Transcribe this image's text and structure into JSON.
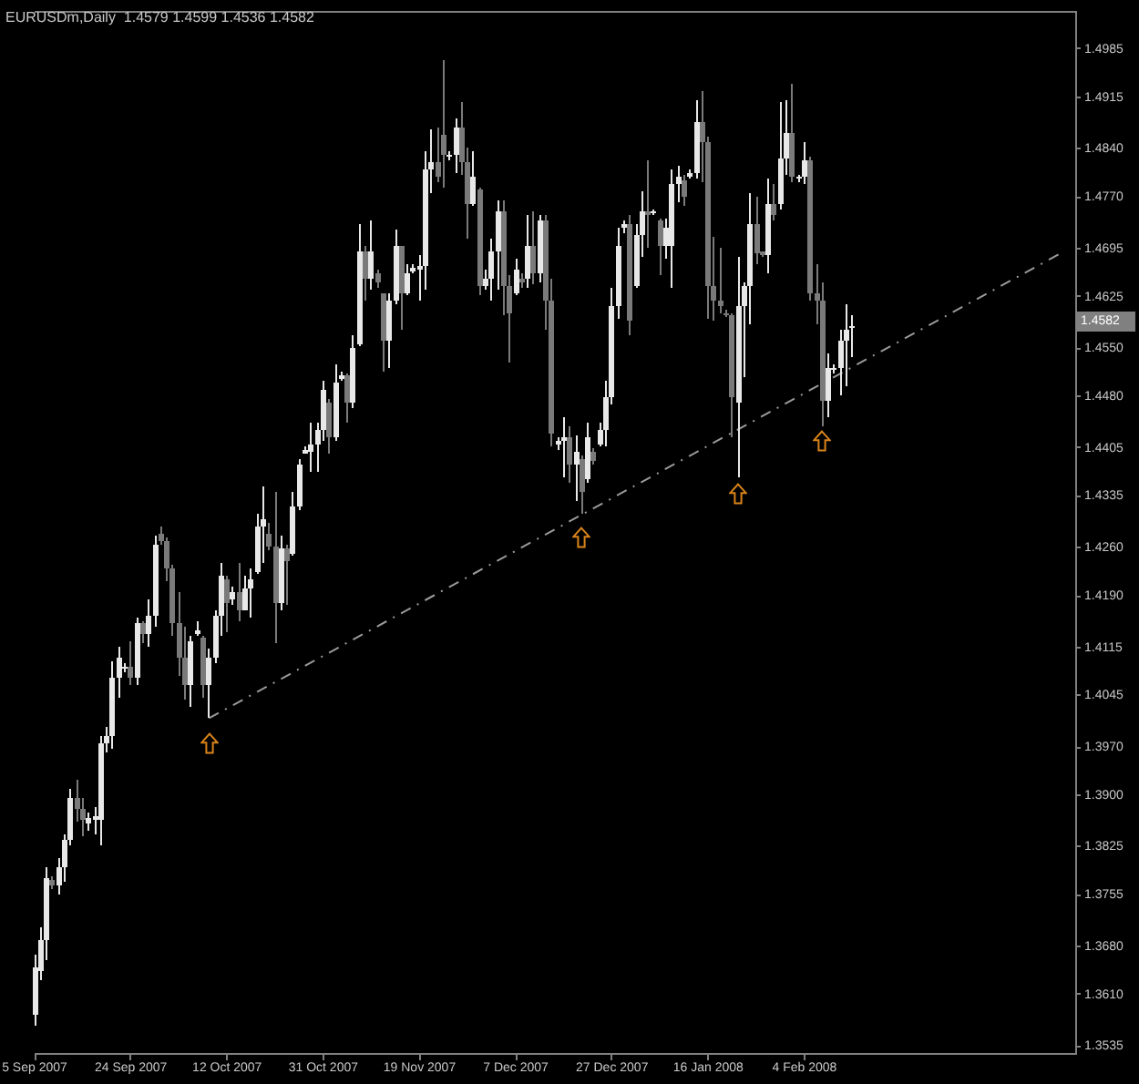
{
  "chart_data": {
    "type": "candlestick",
    "title": "EURUSDm,Daily  1.4579 1.4599 1.4536 1.4582",
    "categories": [
      "5 Sep 2007",
      null,
      null,
      null,
      null,
      null,
      null,
      null,
      null,
      null,
      null,
      null,
      null,
      null,
      null,
      null,
      "24 Sep 2007",
      null,
      null,
      null,
      null,
      null,
      null,
      null,
      null,
      null,
      null,
      null,
      null,
      null,
      null,
      null,
      "12 Oct 2007",
      null,
      null,
      null,
      null,
      null,
      null,
      null,
      null,
      null,
      null,
      null,
      null,
      null,
      null,
      null,
      "31 Oct 2007",
      null,
      null,
      null,
      null,
      null,
      null,
      null,
      null,
      null,
      null,
      null,
      null,
      null,
      null,
      null,
      "19 Nov 2007",
      null,
      null,
      null,
      null,
      null,
      null,
      null,
      null,
      null,
      null,
      null,
      null,
      null,
      null,
      null,
      "7 Dec 2007",
      null,
      null,
      null,
      null,
      null,
      null,
      null,
      null,
      null,
      null,
      null,
      null,
      null,
      null,
      null,
      "27 Dec 2007",
      null,
      null,
      null,
      null,
      null,
      null,
      null,
      null,
      null,
      null,
      null,
      null,
      null,
      null,
      null,
      "16 Jan 2008",
      null,
      null,
      null,
      null,
      null,
      null,
      null,
      null,
      null,
      null,
      null,
      null,
      null,
      null,
      null,
      "4 Feb 2008",
      null,
      null,
      null,
      null,
      null,
      null,
      null,
      null,
      null,
      null,
      null,
      null,
      null,
      null,
      null,
      null,
      null,
      null,
      null,
      null,
      null,
      null,
      null,
      null,
      null,
      null,
      null,
      null,
      null,
      null,
      null,
      null,
      null,
      null,
      null,
      null,
      null,
      null,
      null,
      null,
      null,
      null,
      null,
      null,
      null
    ],
    "ohlc": [
      [
        1.358,
        1.3669,
        1.3564,
        1.365
      ],
      [
        1.3645,
        1.3709,
        1.363,
        1.369
      ],
      [
        1.369,
        1.3796,
        1.3659,
        1.378
      ],
      [
        1.3778,
        1.3783,
        1.3764,
        1.377
      ],
      [
        1.377,
        1.3809,
        1.3756,
        1.3795
      ],
      [
        1.3795,
        1.3843,
        1.3775,
        1.3835
      ],
      [
        1.3835,
        1.3909,
        1.3827,
        1.3895
      ],
      [
        1.3895,
        1.3922,
        1.3862,
        1.388
      ],
      [
        1.388,
        1.3896,
        1.3841,
        1.3865
      ],
      [
        1.386,
        1.3875,
        1.3849,
        1.3868
      ],
      [
        1.3865,
        1.3883,
        1.3843,
        1.387
      ],
      [
        1.3865,
        1.3986,
        1.3827,
        1.3975
      ],
      [
        1.3975,
        1.3999,
        1.3962,
        1.3985
      ],
      [
        1.3985,
        1.4094,
        1.3967,
        1.407
      ],
      [
        1.407,
        1.4117,
        1.4041,
        1.41
      ],
      [
        1.4085,
        1.4091,
        1.408,
        1.4088
      ],
      [
        1.4088,
        1.4125,
        1.4059,
        1.407
      ],
      [
        1.407,
        1.4157,
        1.4059,
        1.415
      ],
      [
        1.415,
        1.4152,
        1.412,
        1.4135
      ],
      [
        1.4135,
        1.4186,
        1.4117,
        1.416
      ],
      [
        1.416,
        1.4278,
        1.4146,
        1.4265
      ],
      [
        1.428,
        1.429,
        1.4265,
        1.427
      ],
      [
        1.427,
        1.4275,
        1.421,
        1.423
      ],
      [
        1.423,
        1.4236,
        1.4133,
        1.415
      ],
      [
        1.415,
        1.4196,
        1.4073,
        1.41
      ],
      [
        1.41,
        1.4146,
        1.4038,
        1.406
      ],
      [
        1.406,
        1.4133,
        1.4028,
        1.4125
      ],
      [
        1.4135,
        1.4152,
        1.4133,
        1.414
      ],
      [
        1.413,
        1.4133,
        1.4041,
        1.406
      ],
      [
        1.406,
        1.4112,
        1.4012,
        1.41
      ],
      [
        1.41,
        1.417,
        1.4091,
        1.416
      ],
      [
        1.416,
        1.4239,
        1.4133,
        1.422
      ],
      [
        1.4215,
        1.4218,
        1.4138,
        1.418
      ],
      [
        1.4185,
        1.4204,
        1.4178,
        1.4195
      ],
      [
        1.4195,
        1.4239,
        1.4152,
        1.417
      ],
      [
        1.417,
        1.4218,
        1.417,
        1.42
      ],
      [
        1.42,
        1.4231,
        1.4157,
        1.4215
      ],
      [
        1.4225,
        1.431,
        1.4223,
        1.429
      ],
      [
        1.429,
        1.4349,
        1.4239,
        1.43
      ],
      [
        1.428,
        1.4297,
        1.4257,
        1.4262
      ],
      [
        1.4262,
        1.4341,
        1.412,
        1.418
      ],
      [
        1.418,
        1.4278,
        1.417,
        1.426
      ],
      [
        1.426,
        1.4265,
        1.4178,
        1.424
      ],
      [
        1.425,
        1.4341,
        1.4249,
        1.432
      ],
      [
        1.432,
        1.4389,
        1.4315,
        1.438
      ],
      [
        1.4398,
        1.4407,
        1.4397,
        1.4403
      ],
      [
        1.44,
        1.4442,
        1.437,
        1.441
      ],
      [
        1.441,
        1.4442,
        1.437,
        1.443
      ],
      [
        1.443,
        1.4502,
        1.4415,
        1.449
      ],
      [
        1.447,
        1.4476,
        1.4397,
        1.442
      ],
      [
        1.442,
        1.4526,
        1.4415,
        1.45
      ],
      [
        1.4505,
        1.4515,
        1.4502,
        1.451
      ],
      [
        1.451,
        1.4513,
        1.4442,
        1.447
      ],
      [
        1.447,
        1.4568,
        1.4463,
        1.455
      ],
      [
        1.4555,
        1.4731,
        1.4552,
        1.469
      ],
      [
        1.469,
        1.47,
        1.4618,
        1.465
      ],
      [
        1.465,
        1.4737,
        1.4634,
        1.469
      ],
      [
        1.466,
        1.4665,
        1.4639,
        1.4645
      ],
      [
        1.463,
        1.4631,
        1.4515,
        1.456
      ],
      [
        1.456,
        1.4631,
        1.4521,
        1.462
      ],
      [
        1.462,
        1.4723,
        1.4613,
        1.47
      ],
      [
        1.47,
        1.47,
        1.4578,
        1.463
      ],
      [
        1.463,
        1.4673,
        1.4626,
        1.466
      ],
      [
        1.4662,
        1.4671,
        1.466,
        1.4667
      ],
      [
        1.4665,
        1.4686,
        1.4618,
        1.467
      ],
      [
        1.467,
        1.4837,
        1.4634,
        1.481
      ],
      [
        1.481,
        1.4868,
        1.4776,
        1.482
      ],
      [
        1.482,
        1.4871,
        1.4792,
        1.48
      ],
      [
        1.486,
        1.4968,
        1.4784,
        1.483
      ],
      [
        1.483,
        1.4837,
        1.4824,
        1.4832
      ],
      [
        1.483,
        1.4884,
        1.4805,
        1.487
      ],
      [
        1.487,
        1.4908,
        1.4802,
        1.482
      ],
      [
        1.482,
        1.4842,
        1.471,
        1.476
      ],
      [
        1.476,
        1.4837,
        1.4758,
        1.48
      ],
      [
        1.478,
        1.4784,
        1.4626,
        1.464
      ],
      [
        1.464,
        1.4665,
        1.4634,
        1.465
      ],
      [
        1.465,
        1.471,
        1.4618,
        1.469
      ],
      [
        1.469,
        1.4765,
        1.4634,
        1.475
      ],
      [
        1.475,
        1.4765,
        1.4597,
        1.464
      ],
      [
        1.464,
        1.4657,
        1.4528,
        1.46
      ],
      [
        1.463,
        1.4679,
        1.4626,
        1.4665
      ],
      [
        1.465,
        1.466,
        1.4639,
        1.4645
      ],
      [
        1.465,
        1.4744,
        1.4639,
        1.47
      ],
      [
        1.47,
        1.475,
        1.4644,
        1.466
      ],
      [
        1.466,
        1.4744,
        1.4647,
        1.4735
      ],
      [
        1.4735,
        1.4744,
        1.4578,
        1.462
      ],
      [
        1.462,
        1.4652,
        1.4407,
        1.4425
      ],
      [
        1.441,
        1.442,
        1.4402,
        1.4415
      ],
      [
        1.4415,
        1.4449,
        1.4362,
        1.442
      ],
      [
        1.442,
        1.4436,
        1.4355,
        1.438
      ],
      [
        1.438,
        1.4423,
        1.4328,
        1.44
      ],
      [
        1.439,
        1.4394,
        1.431,
        1.434
      ],
      [
        1.436,
        1.4442,
        1.4355,
        1.442
      ],
      [
        1.44,
        1.4405,
        1.438,
        1.4385
      ],
      [
        1.441,
        1.4442,
        1.4407,
        1.443
      ],
      [
        1.443,
        1.4502,
        1.4407,
        1.448
      ],
      [
        1.448,
        1.4639,
        1.4468,
        1.461
      ],
      [
        1.461,
        1.4726,
        1.4592,
        1.47
      ],
      [
        1.4725,
        1.4737,
        1.4718,
        1.473
      ],
      [
        1.473,
        1.4744,
        1.4568,
        1.459
      ],
      [
        1.464,
        1.4731,
        1.4639,
        1.4715
      ],
      [
        1.4715,
        1.4779,
        1.4684,
        1.475
      ],
      [
        1.475,
        1.4824,
        1.4697,
        1.4745
      ],
      [
        1.4748,
        1.4752,
        1.4745,
        1.475
      ],
      [
        1.4735,
        1.4739,
        1.4657,
        1.47
      ],
      [
        1.47,
        1.4739,
        1.4679,
        1.4725
      ],
      [
        1.47,
        1.481,
        1.4639,
        1.479
      ],
      [
        1.479,
        1.4816,
        1.4763,
        1.48
      ],
      [
        1.4795,
        1.4802,
        1.4758,
        1.477
      ],
      [
        1.48,
        1.481,
        1.4797,
        1.4805
      ],
      [
        1.4805,
        1.4911,
        1.4797,
        1.488
      ],
      [
        1.488,
        1.4924,
        1.4792,
        1.485
      ],
      [
        1.485,
        1.4858,
        1.4592,
        1.464
      ],
      [
        1.464,
        1.4713,
        1.4589,
        1.462
      ],
      [
        1.462,
        1.4697,
        1.46,
        1.461
      ],
      [
        1.46,
        1.4605,
        1.4595,
        1.4598
      ],
      [
        1.4598,
        1.46,
        1.442,
        1.448
      ],
      [
        1.447,
        1.4684,
        1.4362,
        1.461
      ],
      [
        1.461,
        1.4647,
        1.4507,
        1.464
      ],
      [
        1.464,
        1.4776,
        1.4586,
        1.473
      ],
      [
        1.473,
        1.4771,
        1.4671,
        1.4687
      ],
      [
        1.469,
        1.4692,
        1.4684,
        1.4686
      ],
      [
        1.4686,
        1.4797,
        1.466,
        1.476
      ],
      [
        1.476,
        1.4789,
        1.4737,
        1.4745
      ],
      [
        1.476,
        1.4908,
        1.4752,
        1.4826
      ],
      [
        1.4826,
        1.4911,
        1.4802,
        1.4863
      ],
      [
        1.4863,
        1.4934,
        1.4792,
        1.48
      ],
      [
        1.4798,
        1.4802,
        1.4792,
        1.48
      ],
      [
        1.48,
        1.485,
        1.4789,
        1.4824
      ],
      [
        1.4824,
        1.4829,
        1.4618,
        1.463
      ],
      [
        1.463,
        1.4671,
        1.4586,
        1.462
      ],
      [
        1.462,
        1.4647,
        1.4436,
        1.4473
      ],
      [
        1.4473,
        1.4542,
        1.445,
        1.452
      ],
      [
        1.4518,
        1.4526,
        1.4513,
        1.4522
      ],
      [
        1.4522,
        1.4576,
        1.4481,
        1.456
      ],
      [
        1.456,
        1.4615,
        1.4494,
        1.4577
      ],
      [
        1.4579,
        1.4599,
        1.4536,
        1.4582
      ],
      null,
      null,
      null,
      null,
      null,
      null,
      null,
      null,
      null,
      null,
      null,
      null,
      null,
      null,
      null,
      null,
      null,
      null,
      null,
      null,
      null,
      null,
      null,
      null,
      null,
      null,
      null,
      null,
      null,
      null,
      null,
      null,
      null,
      null,
      null,
      null,
      null
    ],
    "colors": [
      "#e8e8e8",
      "#e8e8e8",
      "#e8e8e8",
      "#7a7a7a",
      "#e8e8e8",
      "#e8e8e8",
      "#e8e8e8",
      "#7a7a7a",
      "#7a7a7a",
      "#e8e8e8",
      "#e8e8e8",
      "#e8e8e8",
      "#e8e8e8",
      "#e8e8e8",
      "#e8e8e8",
      "#e8e8e8",
      "#7a7a7a",
      "#e8e8e8",
      "#7a7a7a",
      "#e8e8e8",
      "#e8e8e8",
      "#7a7a7a",
      "#7a7a7a",
      "#7a7a7a",
      "#7a7a7a",
      "#7a7a7a",
      "#e8e8e8",
      "#e8e8e8",
      "#7a7a7a",
      "#e8e8e8",
      "#e8e8e8",
      "#e8e8e8",
      "#7a7a7a",
      "#e8e8e8",
      "#7a7a7a",
      "#e8e8e8",
      "#e8e8e8",
      "#e8e8e8",
      "#e8e8e8",
      "#7a7a7a",
      "#7a7a7a",
      "#e8e8e8",
      "#7a7a7a",
      "#e8e8e8",
      "#e8e8e8",
      "#e8e8e8",
      "#e8e8e8",
      "#e8e8e8",
      "#e8e8e8",
      "#7a7a7a",
      "#e8e8e8",
      "#e8e8e8",
      "#7a7a7a",
      "#e8e8e8",
      "#e8e8e8",
      "#7a7a7a",
      "#e8e8e8",
      "#7a7a7a",
      "#7a7a7a",
      "#e8e8e8",
      "#e8e8e8",
      "#7a7a7a",
      "#e8e8e8",
      "#e8e8e8",
      "#e8e8e8",
      "#e8e8e8",
      "#e8e8e8",
      "#7a7a7a",
      "#7a7a7a",
      "#e8e8e8",
      "#e8e8e8",
      "#7a7a7a",
      "#7a7a7a",
      "#e8e8e8",
      "#7a7a7a",
      "#e8e8e8",
      "#e8e8e8",
      "#e8e8e8",
      "#7a7a7a",
      "#7a7a7a",
      "#e8e8e8",
      "#7a7a7a",
      "#e8e8e8",
      "#7a7a7a",
      "#e8e8e8",
      "#7a7a7a",
      "#7a7a7a",
      "#e8e8e8",
      "#e8e8e8",
      "#7a7a7a",
      "#e8e8e8",
      "#7a7a7a",
      "#e8e8e8",
      "#7a7a7a",
      "#e8e8e8",
      "#e8e8e8",
      "#e8e8e8",
      "#e8e8e8",
      "#e8e8e8",
      "#7a7a7a",
      "#e8e8e8",
      "#e8e8e8",
      "#7a7a7a",
      "#e8e8e8",
      "#7a7a7a",
      "#e8e8e8",
      "#e8e8e8",
      "#e8e8e8",
      "#7a7a7a",
      "#e8e8e8",
      "#e8e8e8",
      "#7a7a7a",
      "#7a7a7a",
      "#7a7a7a",
      "#7a7a7a",
      "#7a7a7a",
      "#7a7a7a",
      "#e8e8e8",
      "#e8e8e8",
      "#e8e8e8",
      "#7a7a7a",
      "#7a7a7a",
      "#e8e8e8",
      "#7a7a7a",
      "#e8e8e8",
      "#e8e8e8",
      "#7a7a7a",
      "#e8e8e8",
      "#e8e8e8",
      "#7a7a7a",
      "#7a7a7a",
      "#7a7a7a",
      "#e8e8e8",
      "#e8e8e8",
      "#e8e8e8",
      "#e8e8e8",
      "#e8e8e8",
      null,
      null,
      null,
      null,
      null,
      null,
      null,
      null,
      null,
      null,
      null,
      null,
      null,
      null,
      null,
      null,
      null,
      null,
      null,
      null,
      null,
      null,
      null,
      null,
      null,
      null,
      null,
      null,
      null,
      null,
      null,
      null,
      null,
      null,
      null,
      null,
      null
    ],
    "series": [
      {
        "type": "line",
        "color": "#9a9a9a",
        "values": [
          null,
          null,
          null,
          null,
          null,
          null,
          null,
          null,
          null,
          null,
          null,
          null,
          null,
          null,
          null,
          null,
          null,
          null,
          null,
          null,
          null,
          null,
          null,
          null,
          null,
          null,
          null,
          null,
          null,
          1.4012,
          null,
          null,
          null,
          null,
          null,
          null,
          null,
          null,
          null,
          null,
          null,
          null,
          null,
          null,
          null,
          null,
          null,
          null,
          null,
          null,
          null,
          null,
          null,
          null,
          null,
          null,
          null,
          null,
          null,
          null,
          null,
          null,
          null,
          null,
          null,
          null,
          null,
          null,
          null,
          null,
          null,
          null,
          null,
          null,
          null,
          null,
          null,
          null,
          null,
          null,
          null,
          null,
          null,
          null,
          null,
          null,
          null,
          null,
          null,
          null,
          null,
          null,
          null,
          null,
          null,
          null,
          null,
          null,
          null,
          null,
          null,
          null,
          null,
          null,
          null,
          null,
          null,
          null,
          null,
          null,
          null,
          null,
          null,
          null,
          null,
          null,
          null,
          null,
          null,
          null,
          null,
          null,
          null,
          null,
          null,
          null,
          null,
          null,
          null,
          null,
          null,
          null,
          null,
          null,
          null,
          null,
          null,
          null,
          null,
          null,
          null,
          null,
          null,
          null,
          null,
          null,
          null,
          null,
          null,
          null,
          null,
          null,
          null,
          null,
          null,
          null,
          null,
          null,
          null,
          null,
          null,
          null,
          null,
          null,
          null,
          null,
          null,
          null,
          null,
          null,
          null,
          1.469,
          null,
          null
        ]
      }
    ],
    "line_style": "dashed",
    "ylim": [
      1.3525,
      1.504
    ],
    "yticks": [
      1.3535,
      {
        "value": 1.361,
        "label": "1.3610"
      },
      {
        "value": 1.368,
        "label": "1.3680"
      },
      1.3755,
      1.3825,
      {
        "value": 1.39,
        "label": "1.3900"
      },
      {
        "value": 1.397,
        "label": "1.3970"
      },
      1.4045,
      1.4115,
      {
        "value": 1.419,
        "label": "1.4190"
      },
      {
        "value": 1.426,
        "label": "1.4260"
      },
      1.4335,
      1.4405,
      {
        "value": 1.448,
        "label": "1.4480"
      },
      {
        "value": 1.455,
        "label": "1.4550"
      },
      1.4625,
      1.4695,
      {
        "value": 1.477,
        "label": "1.4770"
      },
      {
        "value": 1.484,
        "label": "1.4840"
      },
      1.4915,
      1.4985
    ],
    "annotations": [
      "1.4582"
    ]
  }
}
